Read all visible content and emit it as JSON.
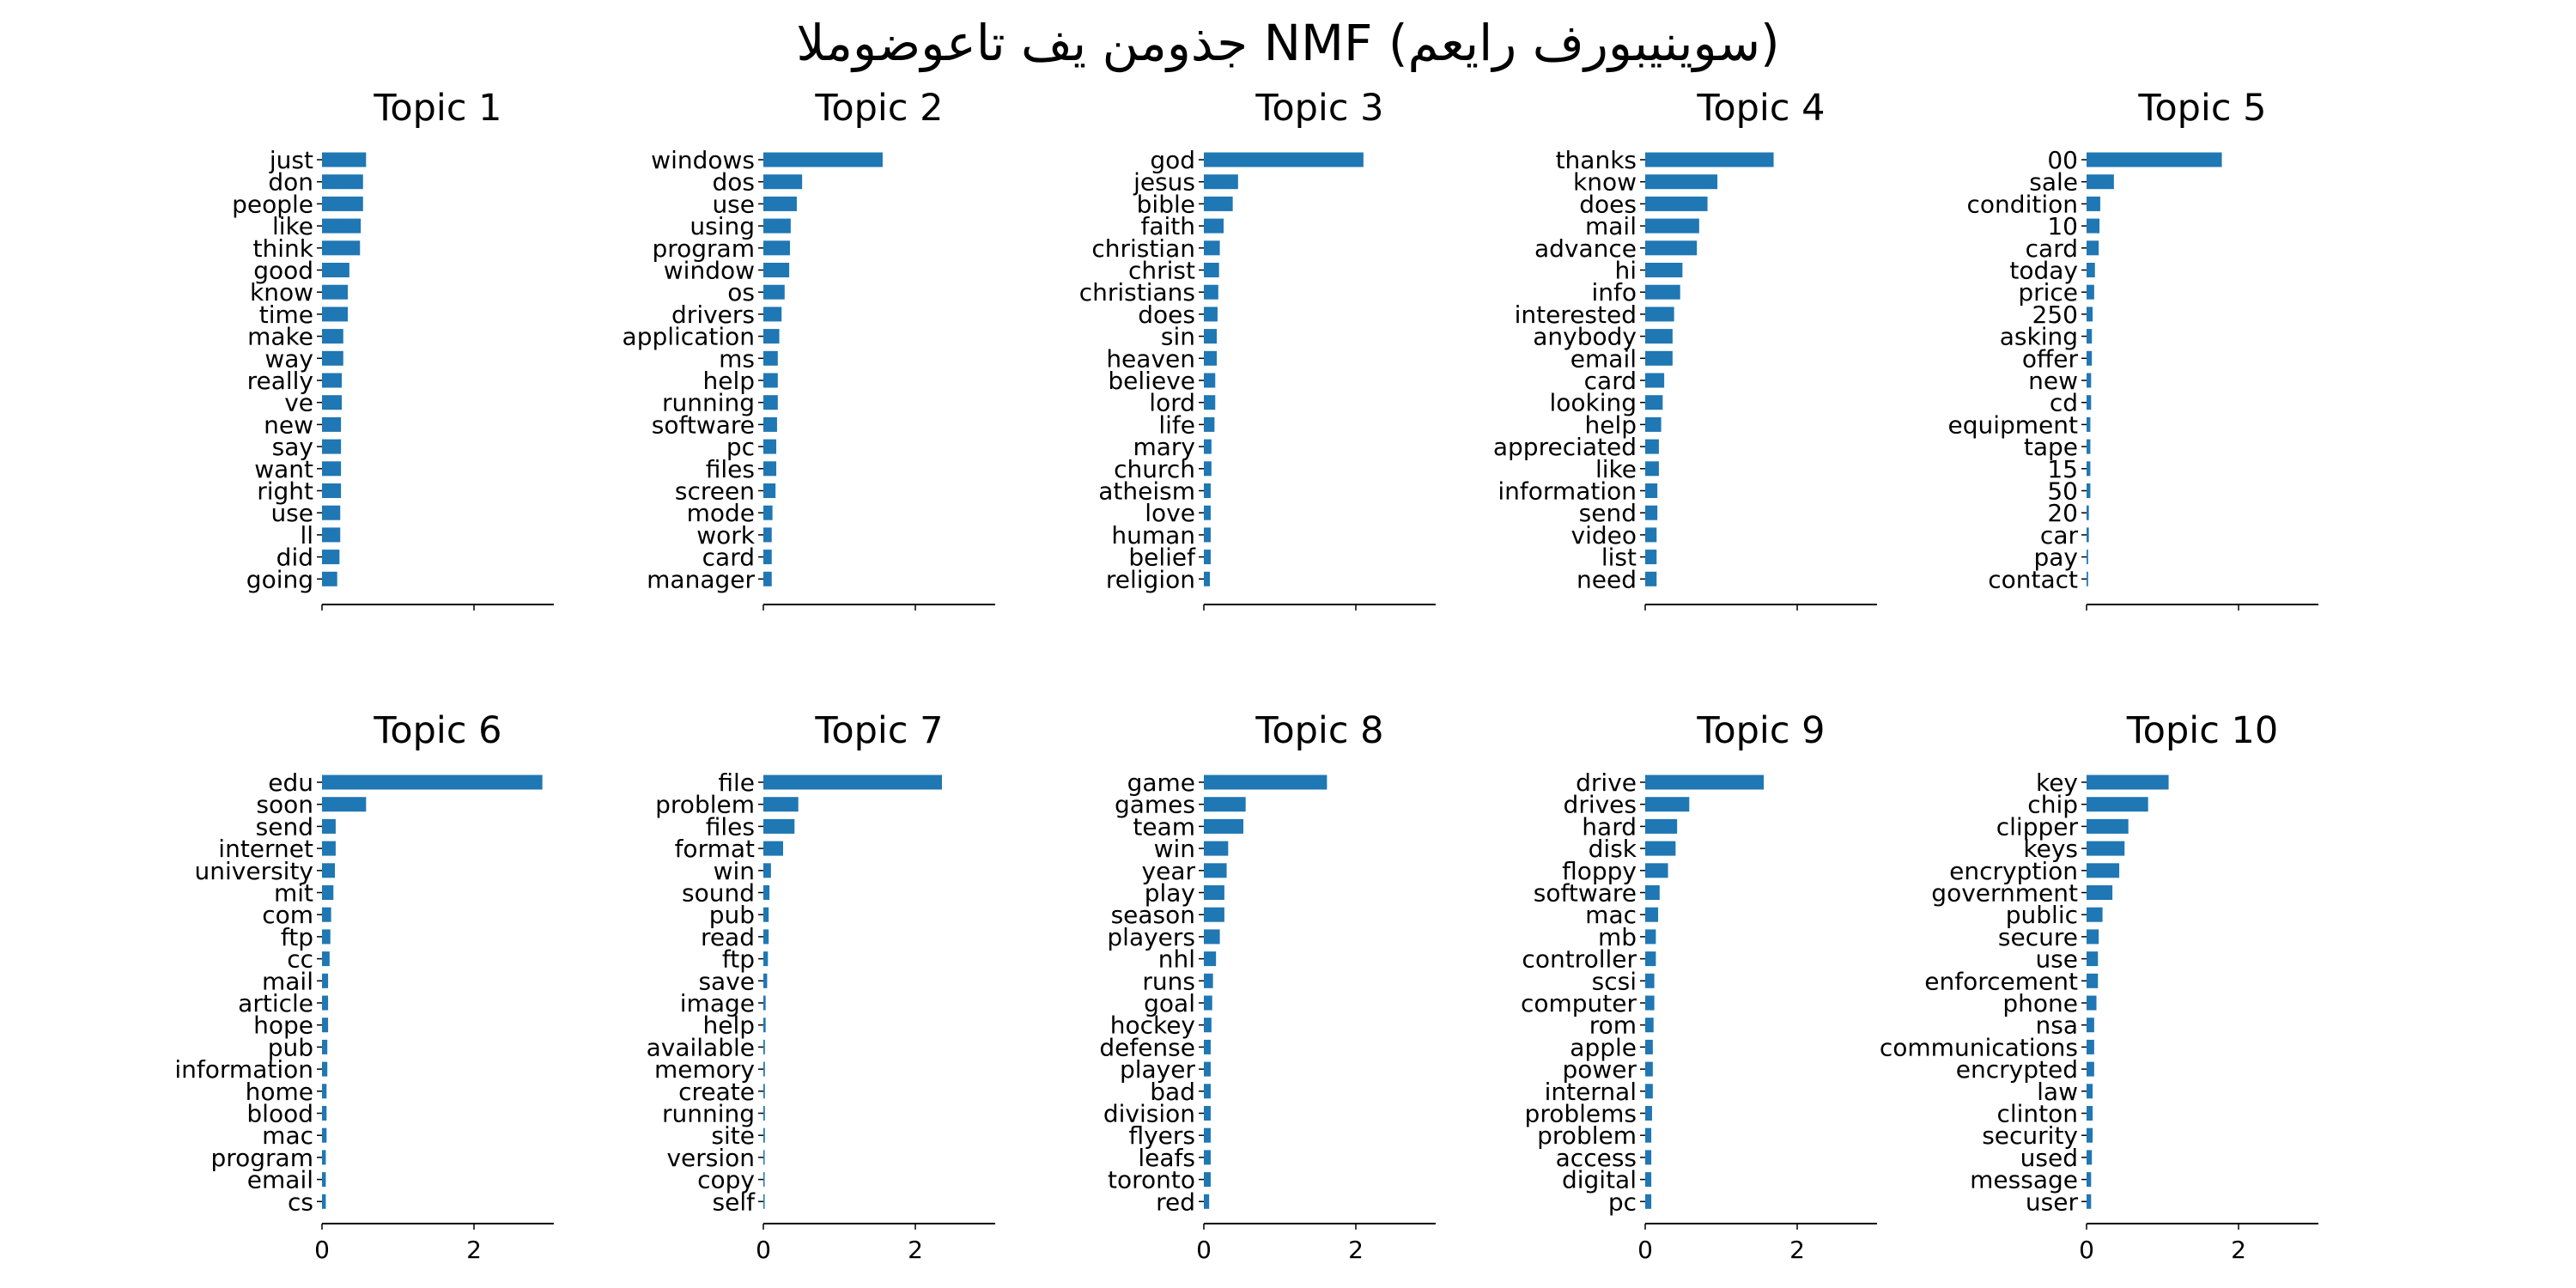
{
  "figure": {
    "suptitle": "الموضوعات في نموذج NMF (معيار فروبينيوس)",
    "bar_color": "#1f77b4",
    "axis_color": "#000000",
    "background": "#ffffff"
  },
  "chart_data": {
    "type": "bar",
    "orientation": "horizontal",
    "title": "الموضوعات في نموذج NMF (معيار فروبينيوس)",
    "layout": {
      "rows": 2,
      "cols": 5,
      "sharex": true
    },
    "xlim": [
      0,
      3.05
    ],
    "xticks": [
      0,
      2
    ],
    "xtick_labels_visible_on": "bottom row only",
    "grid": false,
    "legend": null,
    "xlabel": "",
    "ylabel": "",
    "panels": [
      {
        "title": "Topic 1",
        "categories": [
          "just",
          "don",
          "people",
          "like",
          "think",
          "good",
          "know",
          "time",
          "make",
          "way",
          "really",
          "ve",
          "new",
          "say",
          "want",
          "right",
          "use",
          "ll",
          "did",
          "going"
        ],
        "values": [
          0.58,
          0.54,
          0.54,
          0.51,
          0.5,
          0.36,
          0.34,
          0.34,
          0.28,
          0.28,
          0.26,
          0.26,
          0.25,
          0.25,
          0.25,
          0.25,
          0.24,
          0.24,
          0.23,
          0.2
        ]
      },
      {
        "title": "Topic 2",
        "categories": [
          "windows",
          "dos",
          "use",
          "using",
          "program",
          "window",
          "os",
          "drivers",
          "application",
          "ms",
          "help",
          "running",
          "software",
          "pc",
          "files",
          "screen",
          "mode",
          "work",
          "card",
          "manager"
        ],
        "values": [
          1.57,
          0.51,
          0.44,
          0.36,
          0.35,
          0.34,
          0.28,
          0.24,
          0.21,
          0.19,
          0.19,
          0.19,
          0.18,
          0.17,
          0.17,
          0.16,
          0.12,
          0.11,
          0.11,
          0.11
        ]
      },
      {
        "title": "Topic 3",
        "categories": [
          "god",
          "jesus",
          "bible",
          "faith",
          "christian",
          "christ",
          "christians",
          "does",
          "sin",
          "heaven",
          "believe",
          "lord",
          "life",
          "mary",
          "church",
          "atheism",
          "love",
          "human",
          "belief",
          "religion"
        ],
        "values": [
          2.1,
          0.45,
          0.38,
          0.26,
          0.21,
          0.2,
          0.19,
          0.18,
          0.17,
          0.17,
          0.15,
          0.15,
          0.14,
          0.1,
          0.1,
          0.09,
          0.09,
          0.09,
          0.09,
          0.08
        ]
      },
      {
        "title": "Topic 4",
        "categories": [
          "thanks",
          "know",
          "does",
          "mail",
          "advance",
          "hi",
          "info",
          "interested",
          "anybody",
          "email",
          "card",
          "looking",
          "help",
          "appreciated",
          "like",
          "information",
          "send",
          "video",
          "list",
          "need"
        ],
        "values": [
          1.69,
          0.95,
          0.82,
          0.71,
          0.68,
          0.49,
          0.46,
          0.38,
          0.36,
          0.36,
          0.25,
          0.23,
          0.21,
          0.18,
          0.18,
          0.16,
          0.16,
          0.15,
          0.15,
          0.15
        ]
      },
      {
        "title": "Topic 5",
        "categories": [
          "00",
          "sale",
          "condition",
          "10",
          "card",
          "today",
          "price",
          "250",
          "asking",
          "offer",
          "new",
          "cd",
          "equipment",
          "tape",
          "15",
          "50",
          "20",
          "car",
          "pay",
          "contact"
        ],
        "values": [
          1.78,
          0.36,
          0.18,
          0.17,
          0.16,
          0.11,
          0.1,
          0.08,
          0.07,
          0.07,
          0.06,
          0.06,
          0.05,
          0.05,
          0.05,
          0.05,
          0.03,
          0.03,
          0.02,
          0.02
        ]
      },
      {
        "title": "Topic 6",
        "categories": [
          "edu",
          "soon",
          "send",
          "internet",
          "university",
          "mit",
          "com",
          "ftp",
          "cc",
          "mail",
          "article",
          "hope",
          "pub",
          "information",
          "home",
          "blood",
          "mac",
          "program",
          "email",
          "cs"
        ],
        "values": [
          2.9,
          0.58,
          0.18,
          0.18,
          0.17,
          0.15,
          0.12,
          0.11,
          0.1,
          0.08,
          0.08,
          0.08,
          0.07,
          0.07,
          0.06,
          0.06,
          0.06,
          0.05,
          0.05,
          0.05
        ]
      },
      {
        "title": "Topic 7",
        "categories": [
          "file",
          "problem",
          "files",
          "format",
          "win",
          "sound",
          "pub",
          "read",
          "ftp",
          "save",
          "image",
          "help",
          "available",
          "memory",
          "create",
          "running",
          "site",
          "version",
          "copy",
          "self"
        ],
        "values": [
          2.35,
          0.46,
          0.41,
          0.26,
          0.1,
          0.08,
          0.07,
          0.07,
          0.06,
          0.05,
          0.03,
          0.03,
          0.02,
          0.02,
          0.02,
          0.02,
          0.02,
          0.01,
          0.01,
          0.01
        ]
      },
      {
        "title": "Topic 8",
        "categories": [
          "game",
          "games",
          "team",
          "win",
          "year",
          "play",
          "season",
          "players",
          "nhl",
          "runs",
          "goal",
          "hockey",
          "defense",
          "player",
          "bad",
          "division",
          "flyers",
          "leafs",
          "toronto",
          "red"
        ],
        "values": [
          1.62,
          0.55,
          0.52,
          0.32,
          0.3,
          0.27,
          0.27,
          0.21,
          0.16,
          0.12,
          0.11,
          0.1,
          0.09,
          0.09,
          0.09,
          0.09,
          0.09,
          0.09,
          0.09,
          0.07
        ]
      },
      {
        "title": "Topic 9",
        "categories": [
          "drive",
          "drives",
          "hard",
          "disk",
          "floppy",
          "software",
          "mac",
          "mb",
          "controller",
          "scsi",
          "computer",
          "rom",
          "apple",
          "power",
          "internal",
          "problems",
          "problem",
          "access",
          "digital",
          "pc"
        ],
        "values": [
          1.56,
          0.58,
          0.42,
          0.4,
          0.3,
          0.19,
          0.17,
          0.14,
          0.14,
          0.12,
          0.12,
          0.11,
          0.1,
          0.1,
          0.1,
          0.09,
          0.08,
          0.08,
          0.08,
          0.08
        ]
      },
      {
        "title": "Topic 10",
        "categories": [
          "key",
          "chip",
          "clipper",
          "keys",
          "encryption",
          "government",
          "public",
          "secure",
          "use",
          "enforcement",
          "phone",
          "nsa",
          "communications",
          "encrypted",
          "law",
          "clinton",
          "security",
          "used",
          "message",
          "user"
        ],
        "values": [
          1.08,
          0.81,
          0.55,
          0.5,
          0.43,
          0.34,
          0.21,
          0.16,
          0.15,
          0.15,
          0.13,
          0.1,
          0.1,
          0.1,
          0.08,
          0.08,
          0.08,
          0.07,
          0.06,
          0.06
        ]
      }
    ]
  }
}
